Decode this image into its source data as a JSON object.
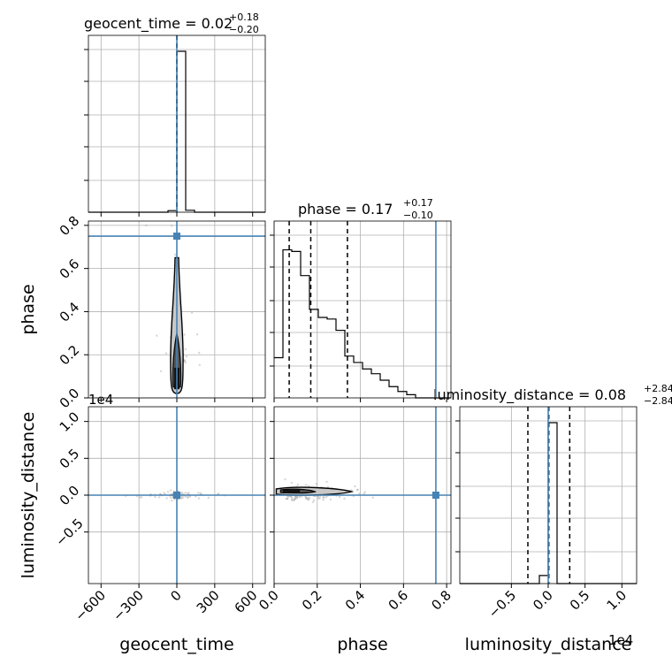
{
  "chart_data": {
    "type": "corner",
    "truth_color": "#4682b4",
    "parameters": [
      {
        "name": "geocent_time",
        "xlabel": "geocent_time",
        "ylabel": "",
        "range": [
          -700,
          700
        ],
        "ticks": [
          -600,
          -300,
          0,
          300,
          600
        ],
        "tick_labels": [
          "−600",
          "−300",
          "0",
          "300",
          "600"
        ],
        "offset_text": "",
        "truth": 0
      },
      {
        "name": "phase",
        "xlabel": "phase",
        "ylabel": "phase",
        "range": [
          0,
          0.82
        ],
        "ticks": [
          0,
          0.2,
          0.4,
          0.6,
          0.8
        ],
        "tick_labels": [
          "0.0",
          "0.2",
          "0.4",
          "0.6",
          "0.8"
        ],
        "offset_text": "",
        "truth": 0.75
      },
      {
        "name": "luminosity_distance",
        "xlabel": "luminosity_distance",
        "ylabel": "luminosity_distance",
        "range": [
          -12000,
          12000
        ],
        "ticks": [
          -5000,
          0,
          5000,
          10000
        ],
        "tick_labels": [
          "−0.5",
          "0.0",
          "0.5",
          "1.0"
        ],
        "offset_text": "1e4",
        "truth": 0
      }
    ],
    "titles": [
      {
        "label": "geocent_time = 0.02",
        "sup": "+0.18",
        "sub": "−0.20"
      },
      {
        "label": "phase = 0.17",
        "sup": "+0.17",
        "sub": "−0.10"
      },
      {
        "label": "luminosity_distance = 0.08",
        "sup": "+2.84",
        "sub": "−2.84"
      }
    ],
    "histograms": [
      {
        "param": "geocent_time",
        "edges": [
          -700,
          -630,
          -560,
          -490,
          -420,
          -350,
          -280,
          -210,
          -140,
          -70,
          0,
          70,
          140,
          210,
          280,
          350,
          420,
          490,
          560,
          630,
          700
        ],
        "counts": [
          0,
          0,
          0,
          0,
          0,
          0,
          0,
          0,
          0,
          0.01,
          1.0,
          0.012,
          0,
          0,
          0,
          0,
          0,
          0,
          0,
          0
        ],
        "quantiles": [
          -0.18,
          0.02,
          0.2
        ]
      },
      {
        "param": "phase",
        "edges": [
          0.0,
          0.041,
          0.082,
          0.123,
          0.164,
          0.205,
          0.246,
          0.287,
          0.328,
          0.369,
          0.41,
          0.451,
          0.492,
          0.533,
          0.574,
          0.615,
          0.656,
          0.697,
          0.738,
          0.779,
          0.82
        ],
        "counts": [
          0.25,
          0.92,
          0.91,
          0.76,
          0.55,
          0.5,
          0.49,
          0.42,
          0.26,
          0.22,
          0.18,
          0.15,
          0.11,
          0.07,
          0.04,
          0.02,
          0.0,
          0.0,
          0.0,
          0.0
        ],
        "quantiles": [
          0.07,
          0.17,
          0.34
        ]
      },
      {
        "param": "luminosity_distance",
        "edges": [
          -12000,
          -10800,
          -9600,
          -8400,
          -7200,
          -6000,
          -4800,
          -3600,
          -2400,
          -1200,
          0,
          1200,
          2400,
          3600,
          4800,
          6000,
          7200,
          8400,
          9600,
          10800,
          12000
        ],
        "counts": [
          0,
          0,
          0,
          0,
          0,
          0,
          0,
          0,
          0,
          0.05,
          1.0,
          0,
          0,
          0,
          0,
          0,
          0,
          0,
          0,
          0
        ],
        "quantiles": [
          -2760,
          80,
          2920
        ]
      }
    ],
    "scatter_panels": [
      {
        "x": "geocent_time",
        "y": "phase",
        "truth": [
          0,
          0.75
        ]
      },
      {
        "x": "geocent_time",
        "y": "luminosity_distance",
        "truth": [
          0,
          0
        ]
      },
      {
        "x": "phase",
        "y": "luminosity_distance",
        "truth": [
          0.75,
          0
        ]
      }
    ],
    "grid": true
  }
}
